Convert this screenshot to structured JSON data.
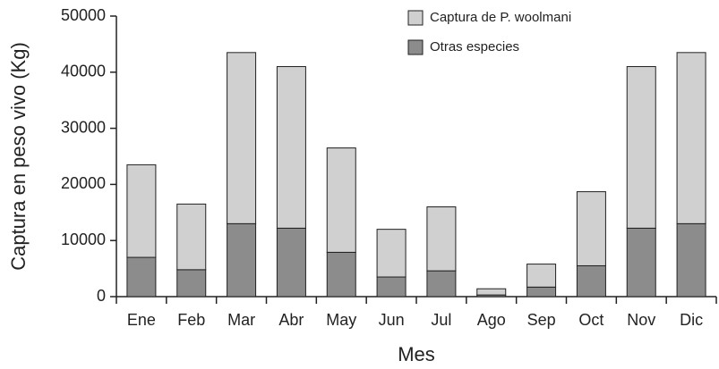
{
  "chart_data": {
    "type": "stacked_bar",
    "x_label": "Mes",
    "y_label": "Captura en peso vivo (Kg)",
    "categories": [
      "Ene",
      "Feb",
      "Mar",
      "Abr",
      "May",
      "Jun",
      "Jul",
      "Ago",
      "Sep",
      "Oct",
      "Nov",
      "Dic"
    ],
    "series": [
      {
        "name": "Captura de P. woolmani",
        "color": "#d0d0d0",
        "values": [
          16500,
          11700,
          30500,
          28800,
          18600,
          8500,
          11400,
          1100,
          4100,
          13200,
          28800,
          30500
        ]
      },
      {
        "name": "Otras especies",
        "color": "#8c8c8c",
        "values": [
          7000,
          4800,
          13000,
          12200,
          7900,
          3500,
          4600,
          300,
          1700,
          5500,
          12200,
          13000
        ]
      }
    ],
    "ylim": [
      0,
      50000
    ],
    "yticks": [
      0,
      10000,
      20000,
      30000,
      40000,
      50000
    ],
    "legend": "top-right"
  }
}
